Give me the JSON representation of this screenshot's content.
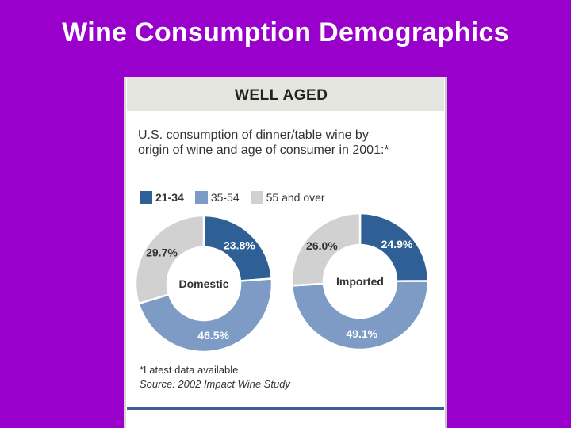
{
  "slide": {
    "title": "Wine Consumption Demographics"
  },
  "figure": {
    "banner": "WELL AGED",
    "subtitle": "U.S. consumption of dinner/table wine by origin of wine and age of consumer in 2001:*",
    "footnote": "*Latest data available",
    "source": "Source: 2002 Impact Wine Study"
  },
  "colors": {
    "21-34": "#2e5f95",
    "35-54": "#7e9bc6",
    "55 and over": "#d1d1d1"
  },
  "chart_data": {
    "type": "pie",
    "legend": [
      "21-34",
      "35-54",
      "55 and over"
    ],
    "legend_position": "top-left",
    "charts": [
      {
        "center_label": "Domestic",
        "slices": [
          {
            "category": "21-34",
            "value": 23.8,
            "label": "23.8%"
          },
          {
            "category": "35-54",
            "value": 46.5,
            "label": "46.5%"
          },
          {
            "category": "55 and over",
            "value": 29.7,
            "label": "29.7%"
          }
        ]
      },
      {
        "center_label": "Imported",
        "slices": [
          {
            "category": "21-34",
            "value": 24.9,
            "label": "24.9%"
          },
          {
            "category": "35-54",
            "value": 49.1,
            "label": "49.1%"
          },
          {
            "category": "55 and over",
            "value": 26.0,
            "label": "26.0%"
          }
        ]
      }
    ]
  }
}
